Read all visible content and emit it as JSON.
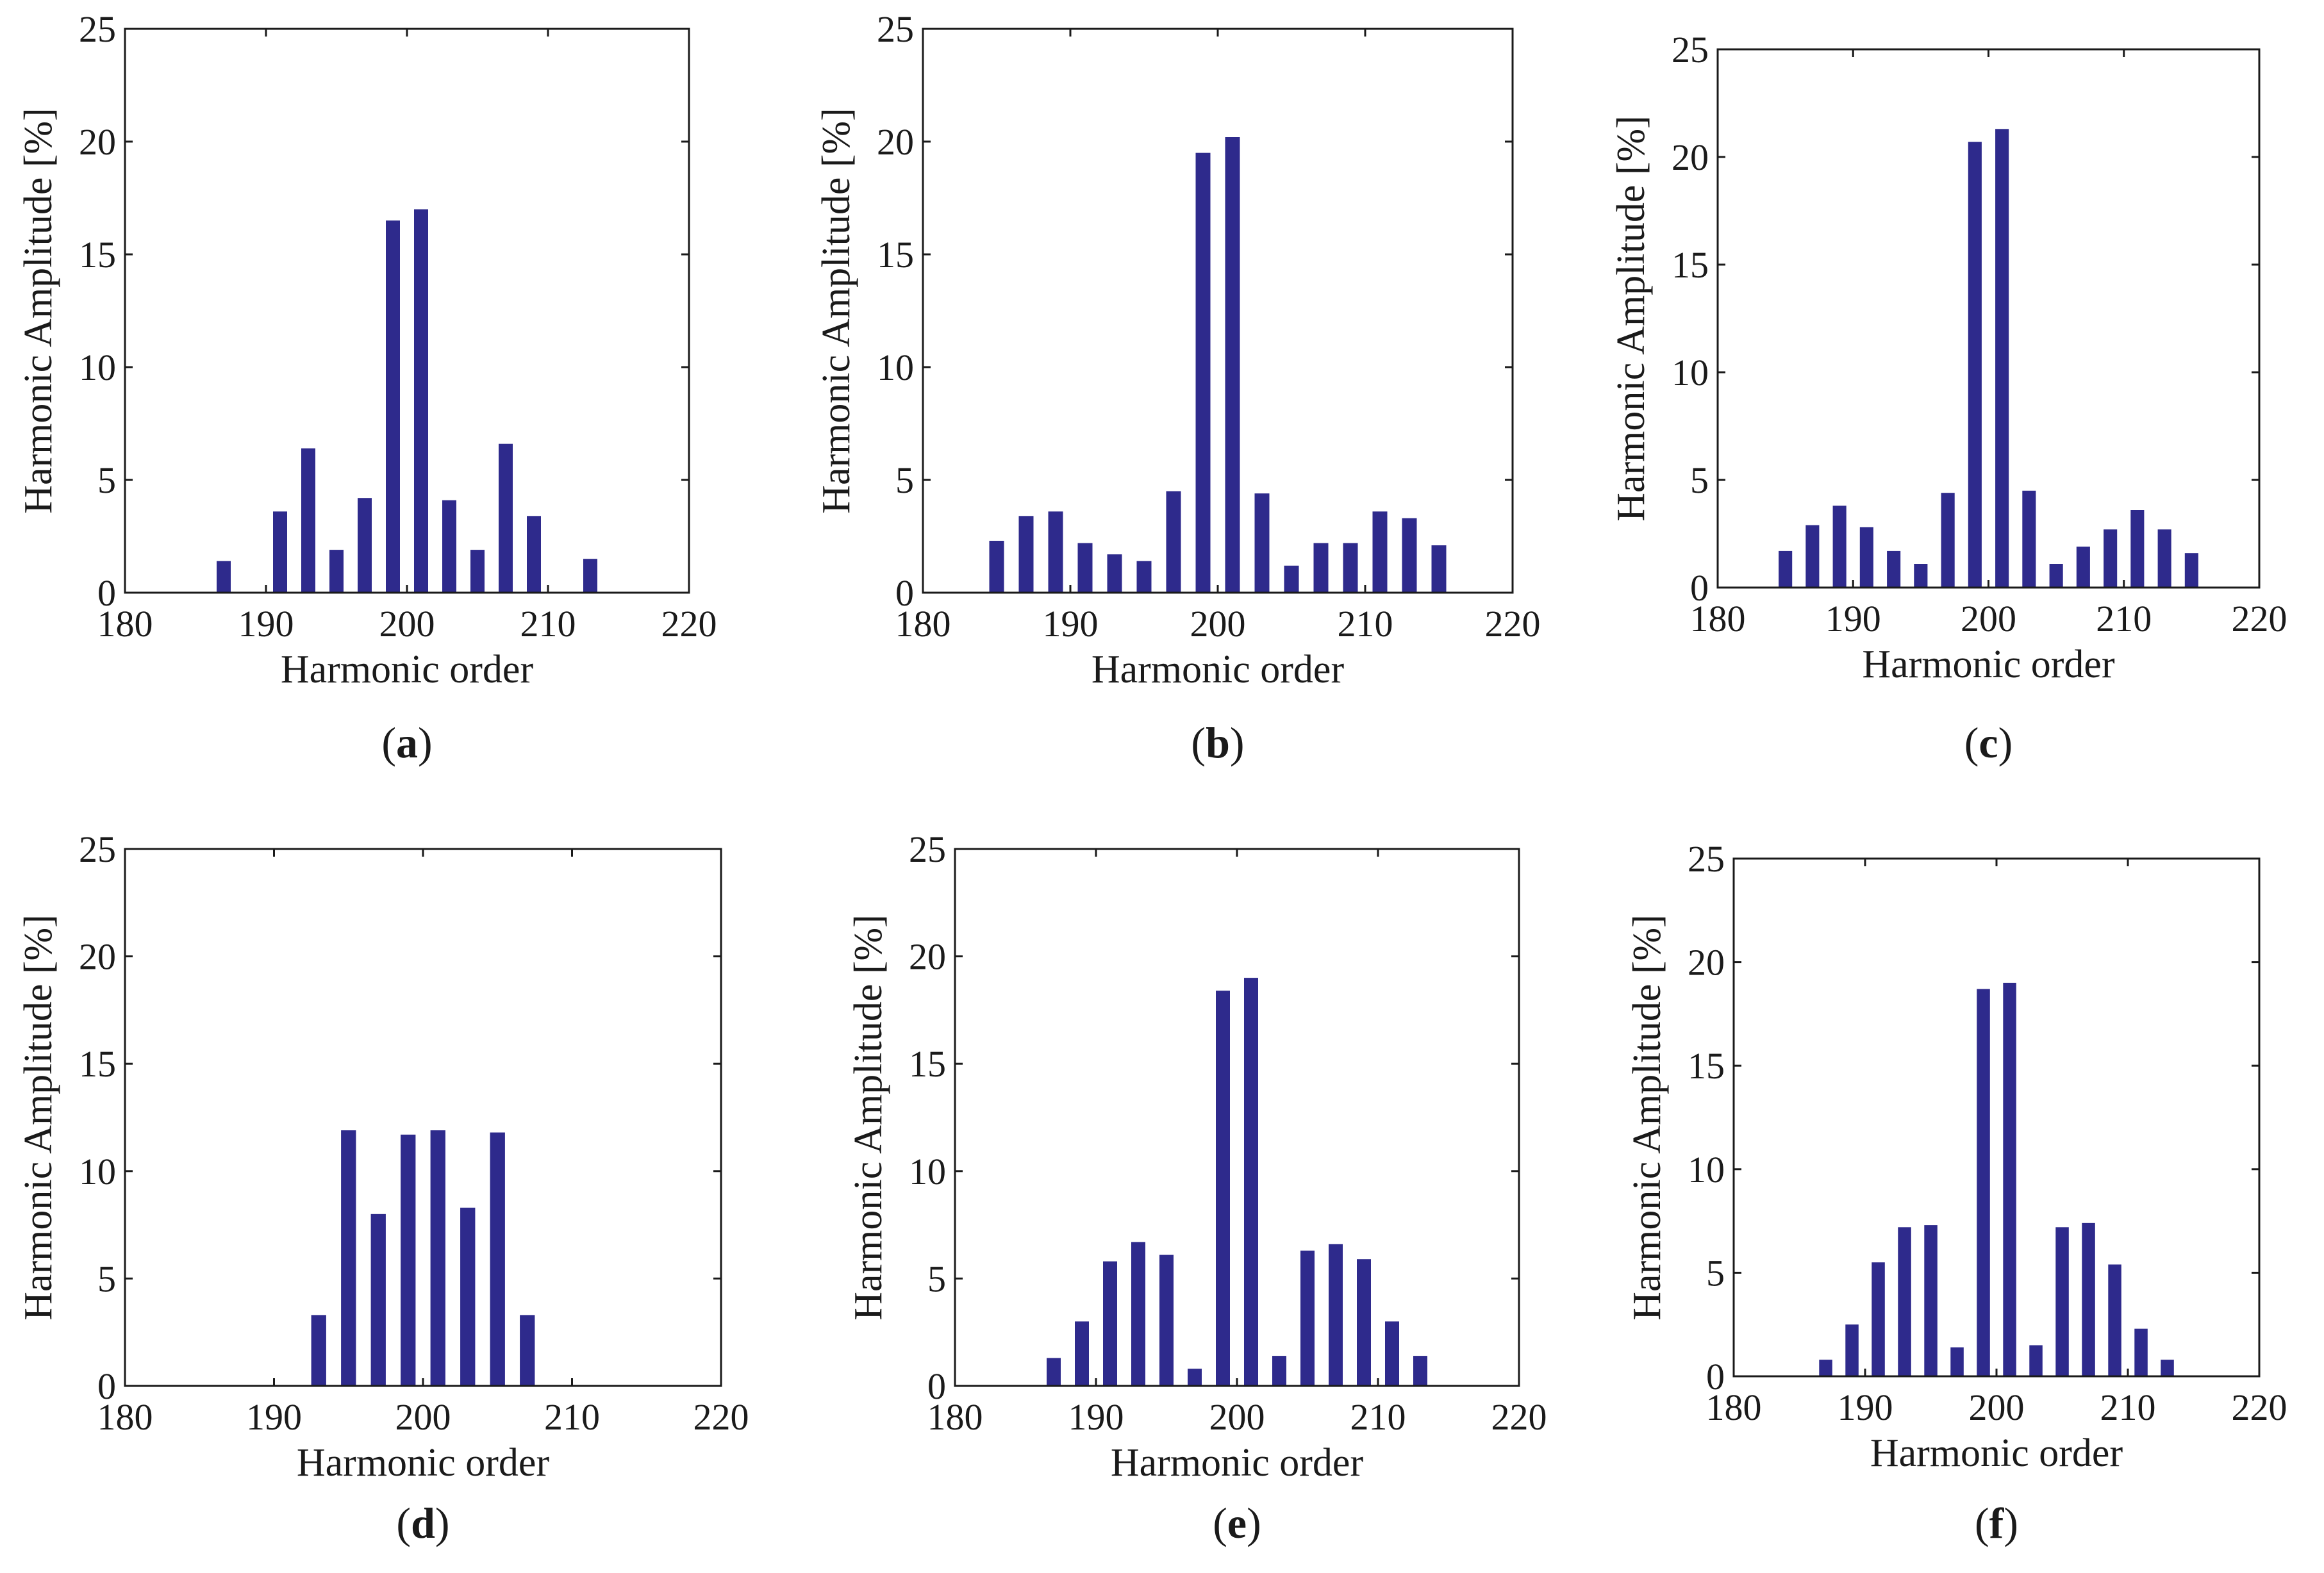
{
  "colors": {
    "bar": "#2e2a8c",
    "axis": "#1a1a1a",
    "background": "#ffffff"
  },
  "chart_data": [
    {
      "id": "a",
      "type": "bar",
      "caption_letter": "a",
      "xlabel": "Harmonic order",
      "ylabel": "Harmonic Amplitude [%]",
      "xlim": [
        180,
        220
      ],
      "ylim": [
        0,
        25
      ],
      "xticks": [
        180,
        190,
        200,
        210,
        220
      ],
      "yticks": [
        0,
        5,
        10,
        15,
        20,
        25
      ],
      "x": [
        187,
        191,
        193,
        195,
        197,
        199,
        201,
        203,
        205,
        207,
        209,
        213
      ],
      "values": [
        1.4,
        3.6,
        6.4,
        1.9,
        4.2,
        16.5,
        17.0,
        4.1,
        1.9,
        6.6,
        3.4,
        1.5
      ]
    },
    {
      "id": "b",
      "type": "bar",
      "caption_letter": "b",
      "xlabel": "Harmonic order",
      "ylabel": "Harmonic Amplitude [%]",
      "xlim": [
        180,
        220
      ],
      "ylim": [
        0,
        25
      ],
      "xticks": [
        180,
        190,
        200,
        210,
        220
      ],
      "yticks": [
        0,
        5,
        10,
        15,
        20,
        25
      ],
      "x": [
        185,
        187,
        189,
        191,
        193,
        195,
        197,
        199,
        201,
        203,
        205,
        207,
        209,
        211,
        213,
        215
      ],
      "values": [
        2.3,
        3.4,
        3.6,
        2.2,
        1.7,
        1.4,
        4.5,
        19.5,
        20.2,
        4.4,
        1.2,
        2.2,
        2.2,
        3.6,
        3.3,
        2.1
      ]
    },
    {
      "id": "c",
      "type": "bar",
      "caption_letter": "c",
      "xlabel": "Harmonic order",
      "ylabel": "Harmonic Amplitude [%]",
      "xlim": [
        180,
        220
      ],
      "ylim": [
        0,
        25
      ],
      "xticks": [
        180,
        190,
        200,
        210,
        220
      ],
      "yticks": [
        0,
        5,
        10,
        15,
        20,
        25
      ],
      "x": [
        185,
        187,
        189,
        191,
        193,
        195,
        197,
        199,
        201,
        203,
        205,
        207,
        209,
        211,
        213,
        215
      ],
      "values": [
        1.7,
        2.9,
        3.8,
        2.8,
        1.7,
        1.1,
        4.4,
        20.7,
        21.3,
        4.5,
        1.1,
        1.9,
        2.7,
        3.6,
        2.7,
        1.6
      ]
    },
    {
      "id": "d",
      "type": "bar",
      "caption_letter": "d",
      "xlabel": "Harmonic order",
      "ylabel": "Harmonic Amplitude [%]",
      "xlim": [
        180,
        220
      ],
      "ylim": [
        0,
        25
      ],
      "xticks": [
        180,
        190,
        200,
        210,
        220
      ],
      "yticks": [
        0,
        5,
        10,
        15,
        20,
        25
      ],
      "x": [
        193,
        195,
        197,
        199,
        201,
        203,
        205,
        207
      ],
      "values": [
        3.3,
        11.9,
        8.0,
        11.7,
        11.9,
        8.3,
        11.8,
        3.3
      ]
    },
    {
      "id": "e",
      "type": "bar",
      "caption_letter": "e",
      "xlabel": "Harmonic order",
      "ylabel": "Harmonic Amplitude [%]",
      "xlim": [
        180,
        220
      ],
      "ylim": [
        0,
        25
      ],
      "xticks": [
        180,
        190,
        200,
        210,
        220
      ],
      "yticks": [
        0,
        5,
        10,
        15,
        20,
        25
      ],
      "x": [
        187,
        189,
        191,
        193,
        195,
        197,
        199,
        201,
        203,
        205,
        207,
        209,
        211,
        213
      ],
      "values": [
        1.3,
        3.0,
        5.8,
        6.7,
        6.1,
        0.8,
        18.4,
        19.0,
        1.4,
        6.3,
        6.6,
        5.9,
        3.0,
        1.4
      ]
    },
    {
      "id": "f",
      "type": "bar",
      "caption_letter": "f",
      "xlabel": "Harmonic order",
      "ylabel": "Harmonic Amplitude [%]",
      "xlim": [
        180,
        220
      ],
      "ylim": [
        0,
        25
      ],
      "xticks": [
        180,
        190,
        200,
        210,
        220
      ],
      "yticks": [
        0,
        5,
        10,
        15,
        20,
        25
      ],
      "x": [
        187,
        189,
        191,
        193,
        195,
        197,
        199,
        201,
        203,
        205,
        207,
        209,
        211,
        213
      ],
      "values": [
        0.8,
        2.5,
        5.5,
        7.2,
        7.3,
        1.4,
        18.7,
        19.0,
        1.5,
        7.2,
        7.4,
        5.4,
        2.3,
        0.8
      ]
    }
  ]
}
